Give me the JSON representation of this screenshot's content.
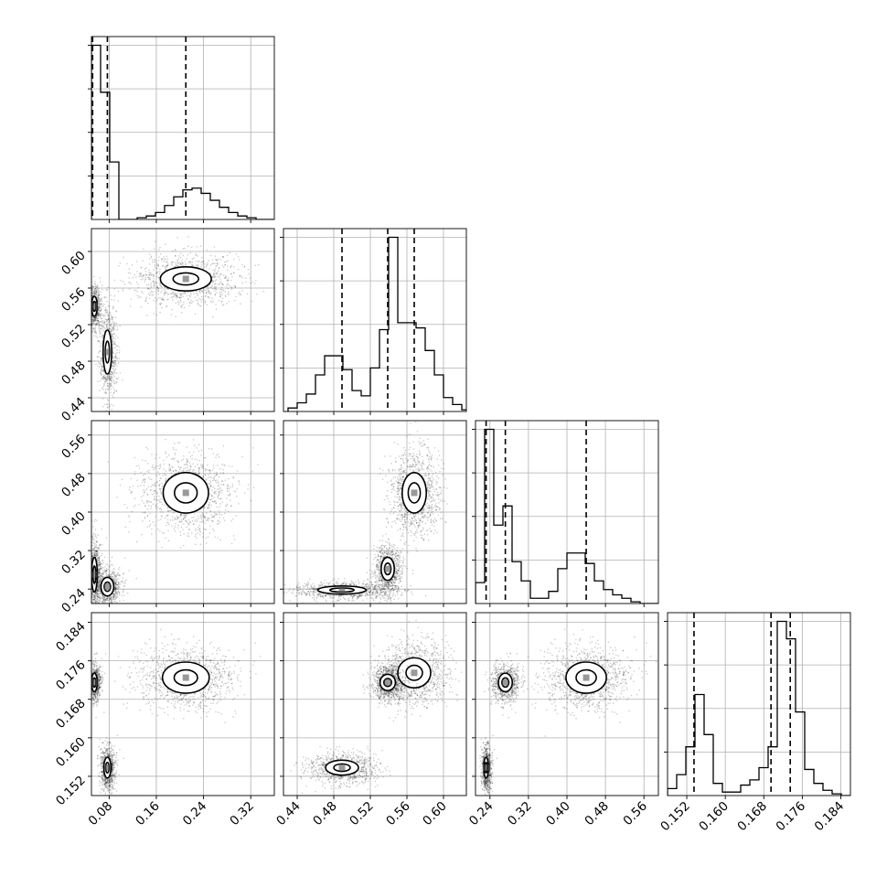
{
  "chart_data": {
    "type": "corner",
    "title": "",
    "grid": true,
    "n_params": 4,
    "parameters": [
      {
        "range": [
          0.05,
          0.36
        ],
        "ticks": [
          0.08,
          0.16,
          0.24,
          0.32
        ],
        "tick_labels": [
          "0.08",
          "0.16",
          "0.24",
          "0.32"
        ],
        "quantiles": [
          0.052,
          0.077,
          0.21
        ],
        "hist_edges_start": 0.05,
        "hist_bin_width": 0.0155,
        "hist_counts": [
          100,
          73,
          33,
          0,
          0,
          1,
          2,
          4,
          8,
          13,
          17,
          18,
          15,
          11,
          7,
          4,
          2,
          1,
          0,
          0
        ]
      },
      {
        "range": [
          0.425,
          0.625
        ],
        "ticks": [
          0.44,
          0.48,
          0.52,
          0.56,
          0.6
        ],
        "tick_labels": [
          "0.44",
          "0.48",
          "0.52",
          "0.56",
          "0.60"
        ],
        "quantiles": [
          0.489,
          0.539,
          0.568
        ],
        "hist_edges_start": 0.43,
        "hist_bin_width": 0.01,
        "hist_counts": [
          2,
          5,
          10,
          21,
          32,
          32,
          24,
          12,
          9,
          25,
          47,
          100,
          51,
          51,
          48,
          35,
          21,
          8,
          4,
          1
        ]
      },
      {
        "range": [
          0.21,
          0.59
        ],
        "ticks": [
          0.24,
          0.32,
          0.4,
          0.48,
          0.56
        ],
        "tick_labels": [
          "0.24",
          "0.32",
          "0.40",
          "0.48",
          "0.56"
        ],
        "quantiles": [
          0.232,
          0.272,
          0.44
        ],
        "hist_edges_start": 0.21,
        "hist_bin_width": 0.019,
        "hist_counts": [
          12,
          100,
          45,
          56,
          24,
          13,
          3,
          3,
          7,
          20,
          29,
          29,
          23,
          13,
          8,
          5,
          3,
          1,
          0,
          0
        ]
      },
      {
        "range": [
          0.148,
          0.186
        ],
        "ticks": [
          0.152,
          0.16,
          0.168,
          0.176,
          0.184
        ],
        "tick_labels": [
          "0.152",
          "0.160",
          "0.168",
          "0.176",
          "0.184"
        ],
        "quantiles": [
          0.1535,
          0.1695,
          0.1735
        ],
        "hist_edges_start": 0.148,
        "hist_bin_width": 0.0019,
        "hist_counts": [
          4,
          12,
          28,
          58,
          35,
          7,
          2,
          2,
          6,
          9,
          16,
          28,
          100,
          90,
          48,
          15,
          7,
          3,
          1,
          0
        ]
      }
    ],
    "hist_axis_ticks_unlabeled": true,
    "modes_2d": {
      "1_0": [
        {
          "x": 0.21,
          "y": 0.57,
          "sx": 0.036,
          "sy": 0.011,
          "w": 1.0
        },
        {
          "x": 0.055,
          "y": 0.54,
          "sx": 0.004,
          "sy": 0.009,
          "w": 0.55
        },
        {
          "x": 0.077,
          "y": 0.49,
          "sx": 0.006,
          "sy": 0.02,
          "w": 0.7
        }
      ],
      "2_0": [
        {
          "x": 0.21,
          "y": 0.44,
          "sx": 0.032,
          "sy": 0.035,
          "w": 1.0
        },
        {
          "x": 0.055,
          "y": 0.27,
          "sx": 0.004,
          "sy": 0.03,
          "w": 0.65
        },
        {
          "x": 0.077,
          "y": 0.245,
          "sx": 0.009,
          "sy": 0.016,
          "w": 0.7
        }
      ],
      "2_1": [
        {
          "x": 0.568,
          "y": 0.44,
          "sx": 0.011,
          "sy": 0.035,
          "w": 1.0
        },
        {
          "x": 0.539,
          "y": 0.282,
          "sx": 0.006,
          "sy": 0.02,
          "w": 0.8
        },
        {
          "x": 0.489,
          "y": 0.238,
          "sx": 0.022,
          "sy": 0.007,
          "w": 0.8
        }
      ],
      "3_0": [
        {
          "x": 0.21,
          "y": 0.1725,
          "sx": 0.033,
          "sy": 0.0027,
          "w": 1.0
        },
        {
          "x": 0.055,
          "y": 0.1715,
          "sx": 0.004,
          "sy": 0.0016,
          "w": 0.6
        },
        {
          "x": 0.077,
          "y": 0.1538,
          "sx": 0.005,
          "sy": 0.0018,
          "w": 0.75
        }
      ],
      "3_1": [
        {
          "x": 0.568,
          "y": 0.1735,
          "sx": 0.015,
          "sy": 0.0026,
          "w": 1.0
        },
        {
          "x": 0.539,
          "y": 0.1715,
          "sx": 0.007,
          "sy": 0.0014,
          "w": 0.8
        },
        {
          "x": 0.489,
          "y": 0.1538,
          "sx": 0.015,
          "sy": 0.0013,
          "w": 0.8
        }
      ],
      "3_2": [
        {
          "x": 0.44,
          "y": 0.1725,
          "sx": 0.035,
          "sy": 0.0027,
          "w": 1.0
        },
        {
          "x": 0.272,
          "y": 0.1715,
          "sx": 0.012,
          "sy": 0.0016,
          "w": 0.7
        },
        {
          "x": 0.232,
          "y": 0.1538,
          "sx": 0.004,
          "sy": 0.0018,
          "w": 0.7
        }
      ]
    }
  }
}
